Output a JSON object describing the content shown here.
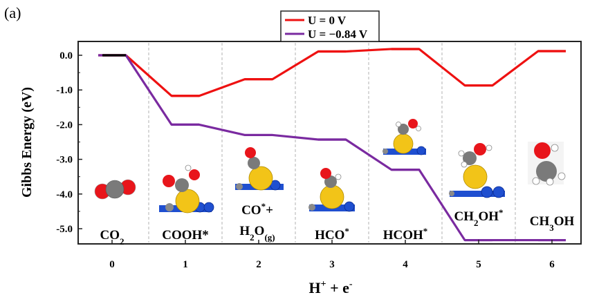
{
  "panel_label": "(a)",
  "chart_data": {
    "type": "line",
    "xlabel_main": "H",
    "xlabel_sup": "+",
    "xlabel_mid": " + e",
    "xlabel_sup2": "-",
    "ylabel": "Gibbs Energy (eV)",
    "x_ticks": [
      "0",
      "1",
      "2",
      "3",
      "4",
      "5",
      "6"
    ],
    "y_ticks": [
      {
        "v": 0.0,
        "label": "0.0"
      },
      {
        "v": -1.0,
        "label": "-1.0"
      },
      {
        "v": -2.0,
        "label": "-2.0"
      },
      {
        "v": -3.0,
        "label": "-3.0"
      },
      {
        "v": -4.0,
        "label": "-4.0"
      },
      {
        "v": -5.0,
        "label": "-5.0"
      }
    ],
    "ylim": [
      -5.5,
      0.3
    ],
    "xlim": [
      -0.6,
      6.6
    ],
    "grid": "vertical dashed separators",
    "legend_position": "top-center",
    "series": [
      {
        "name": "U = 0 V",
        "color": "#ee1111",
        "values": [
          0.0,
          -1.17,
          -0.69,
          0.11,
          0.18,
          -0.87,
          0.12
        ]
      },
      {
        "name": "U = −0.84 V",
        "color": "#7a2aa0",
        "values": [
          0.0,
          -2.0,
          -2.3,
          -2.43,
          -3.3,
          -5.33,
          -5.33
        ]
      }
    ],
    "initial_state_color": "#000000",
    "species": [
      {
        "parts": [
          {
            "t": "CO"
          },
          {
            "t": "2",
            "sub": true
          }
        ]
      },
      {
        "parts": [
          {
            "t": "COOH*"
          }
        ]
      },
      {
        "parts": [
          {
            "t": "CO"
          },
          {
            "t": "*",
            "sup": true
          },
          {
            "t": "+"
          }
        ],
        "parts2": [
          {
            "t": "H"
          },
          {
            "t": "2",
            "sub": true
          },
          {
            "t": "O"
          },
          {
            "t": "(g)",
            "sub": true
          }
        ]
      },
      {
        "parts": [
          {
            "t": "HCO"
          },
          {
            "t": "*",
            "sup": true
          }
        ]
      },
      {
        "parts": [
          {
            "t": "HCOH"
          },
          {
            "t": "*",
            "sup": true
          }
        ]
      },
      {
        "parts": [
          {
            "t": "CH"
          },
          {
            "t": "2",
            "sub": true
          },
          {
            "t": "OH"
          },
          {
            "t": "*",
            "sup": true
          }
        ]
      },
      {
        "parts": [
          {
            "t": "CH"
          },
          {
            "t": "3",
            "sub": true
          },
          {
            "t": "OH"
          }
        ]
      }
    ]
  }
}
